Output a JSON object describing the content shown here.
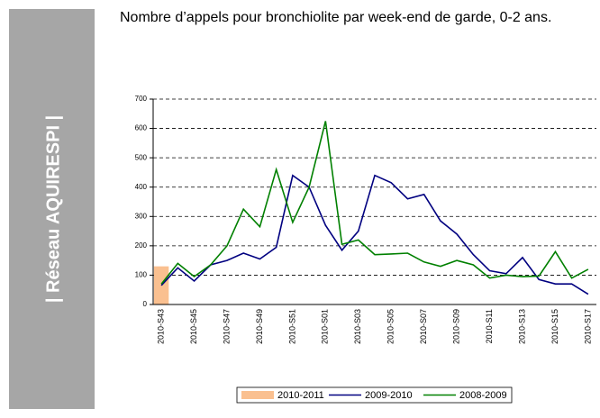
{
  "sidebar": "| Réseau AQUIRESPI |",
  "chart_data": {
    "type": "line",
    "title": "Nombre d’appels pour bronchiolite par week-end de garde, 0-2 ans.",
    "categories": [
      "2010-S43",
      null,
      "2010-S45",
      null,
      "2010-S47",
      null,
      "2010-S49",
      null,
      "2010-S51",
      null,
      "2010-S01",
      null,
      "2010-S03",
      null,
      "2010-S05",
      null,
      "2010-S07",
      null,
      "2010-S09",
      null,
      "2010-S11",
      null,
      "2010-S13",
      null,
      "2010-S15",
      null,
      "2010-S17"
    ],
    "series": [
      {
        "name": "2010-2011",
        "type": "bar",
        "color": "#fac090",
        "values": [
          130,
          null,
          null,
          null,
          null,
          null,
          null,
          null,
          null,
          null,
          null,
          null,
          null,
          null,
          null,
          null,
          null,
          null,
          null,
          null,
          null,
          null,
          null,
          null,
          null,
          null,
          null
        ]
      },
      {
        "name": "2009-2010",
        "type": "line",
        "color": "#000080",
        "values": [
          65,
          125,
          80,
          135,
          150,
          175,
          155,
          195,
          440,
          400,
          270,
          185,
          250,
          440,
          415,
          360,
          375,
          285,
          240,
          170,
          115,
          105,
          160,
          85,
          70,
          70,
          35
        ]
      },
      {
        "name": "2008-2009",
        "type": "line",
        "color": "#008000",
        "values": [
          70,
          140,
          95,
          135,
          200,
          325,
          265,
          460,
          280,
          400,
          625,
          205,
          220,
          170,
          172,
          175,
          145,
          130,
          150,
          135,
          90,
          100,
          95,
          97,
          180,
          90,
          120
        ]
      }
    ],
    "ylim": [
      0,
      700
    ],
    "yticks": [
      0,
      100,
      200,
      300,
      400,
      500,
      600,
      700
    ],
    "grid": true,
    "legend": "bottom"
  }
}
